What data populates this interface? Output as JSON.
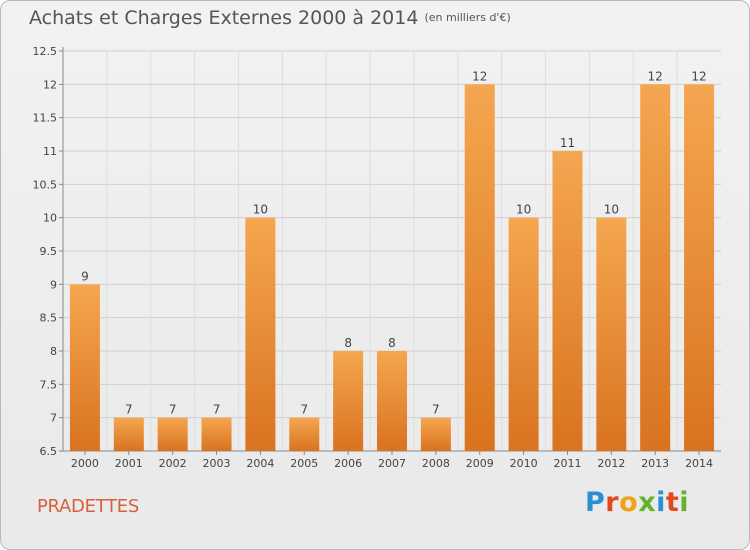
{
  "header": {
    "title": "Achats et Charges Externes 2000 à 2014",
    "subtitle": "(en milliers d'€)"
  },
  "footer": {
    "city": "PRADETTES",
    "logo_text": "Proxiti",
    "logo_letters": [
      {
        "ch": "P",
        "color": "#2b8fd6"
      },
      {
        "ch": "r",
        "color": "#e0491f"
      },
      {
        "ch": "o",
        "color": "#f0a319"
      },
      {
        "ch": "x",
        "color": "#65b22e"
      },
      {
        "ch": "i",
        "color": "#2b8fd6"
      },
      {
        "ch": "t",
        "color": "#e0491f"
      },
      {
        "ch": "i",
        "color": "#65b22e"
      }
    ]
  },
  "colors": {
    "bar_light": "#f5a650",
    "bar_dark": "#d9731f",
    "grid": "#cfcfcf",
    "text": "#444444",
    "city": "#d7603b"
  },
  "chart_data": {
    "type": "bar",
    "title": "Achats et Charges Externes 2000 à 2014",
    "subtitle": "(en milliers d'€)",
    "categories": [
      "2000",
      "2001",
      "2002",
      "2003",
      "2004",
      "2005",
      "2006",
      "2007",
      "2008",
      "2009",
      "2010",
      "2011",
      "2012",
      "2013",
      "2014"
    ],
    "values": [
      9,
      7,
      7,
      7,
      10,
      7,
      8,
      8,
      7,
      12,
      10,
      11,
      10,
      12,
      12
    ],
    "data_labels": [
      "9",
      "7",
      "7",
      "7",
      "10",
      "7",
      "8",
      "8",
      "7",
      "12",
      "10",
      "11",
      "10",
      "12",
      "12"
    ],
    "ylim": [
      6.5,
      12.5
    ],
    "yticks": [
      6.5,
      7,
      7.5,
      8,
      8.5,
      9,
      9.5,
      10,
      10.5,
      11,
      11.5,
      12,
      12.5
    ],
    "ytick_labels": [
      "6.5",
      "7",
      "7.5",
      "8",
      "8.5",
      "9",
      "9.5",
      "10",
      "10.5",
      "11",
      "11.5",
      "12",
      "12.5"
    ],
    "xlabel": "",
    "ylabel": "",
    "grid": true,
    "legend": "none"
  }
}
